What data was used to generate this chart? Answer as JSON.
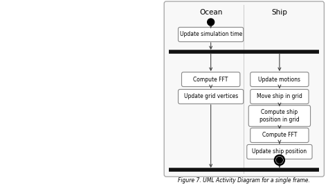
{
  "title": "Figure 7. UML Activity Diagram for a single frame.",
  "ocean_label": "Ocean",
  "ship_label": "Ship",
  "background": "#ffffff",
  "frame_fill": "#f8f8f8",
  "frame_edge": "#aaaaaa",
  "box_fill": "#ffffff",
  "box_edge": "#888888",
  "divider_color": "#111111",
  "arrow_color": "#444444",
  "line_color": "#aaaaaa",
  "left_half_color": "#f0f0f0"
}
